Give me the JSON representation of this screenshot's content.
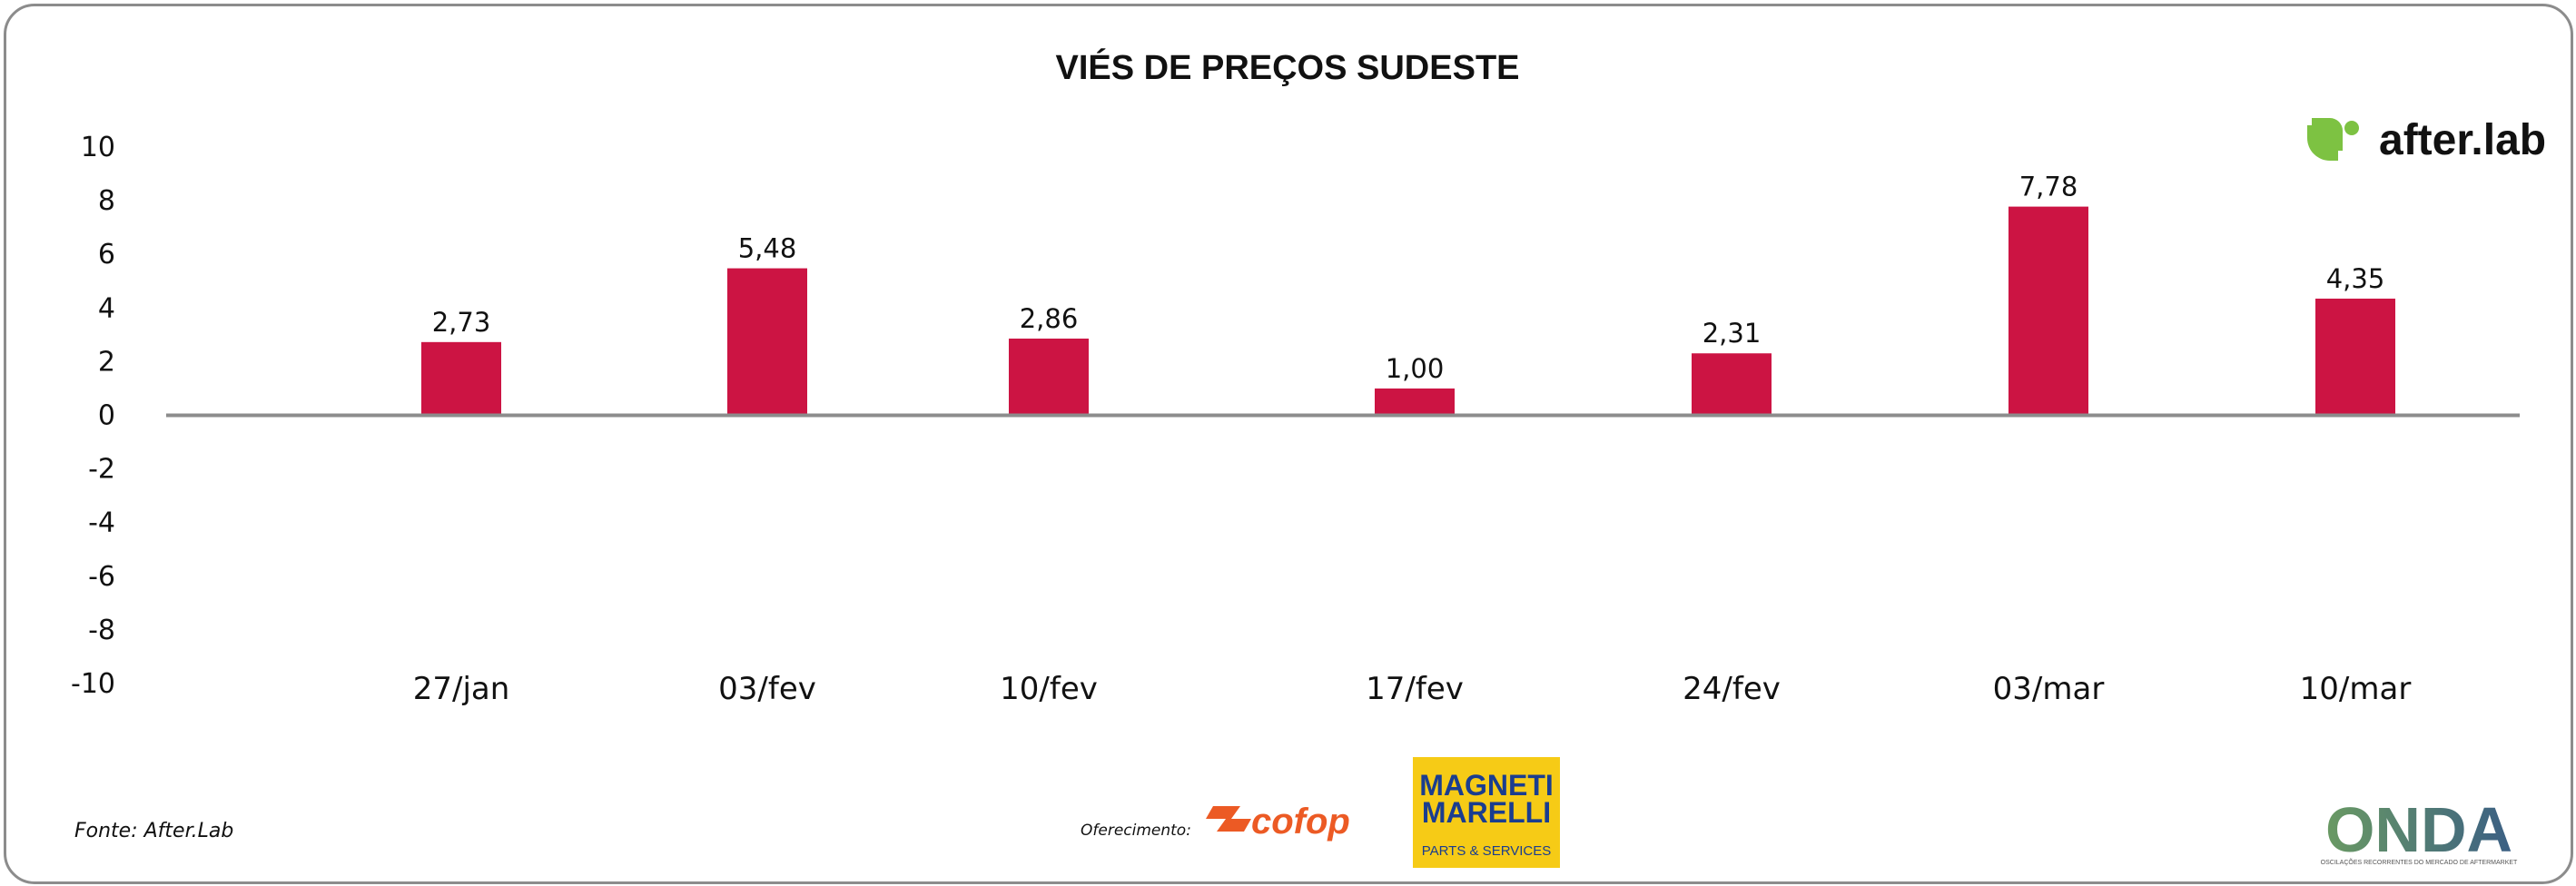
{
  "colors": {
    "bar": "#cc1443",
    "axis": "#8c8c8c",
    "afterlab_green": "#7dc242",
    "cofop_orange": "#ec5a24",
    "magneti_yellow": "#f6cb16",
    "onda_green": "#6a9a63",
    "onda_blue": "#3b5f84"
  },
  "footer": {
    "source": "Fonte: After.Lab",
    "offered_by": "Oferecimento:"
  },
  "logos": {
    "afterlab": {
      "text": "after.lab",
      "icon": "afterlab-logo-icon"
    },
    "cofop": {
      "text": "cofop"
    },
    "magneti": {
      "line1": "MAGNETI",
      "line2": "MARELLI",
      "line3": "PARTS & SERVICES"
    },
    "onda": {
      "text": "ONDA",
      "tagline": "OSCILAÇÕES RECORRENTES DO MERCADO DE AFTERMARKET"
    }
  },
  "chart_data": {
    "type": "bar",
    "title": "VIÉS DE PREÇOS SUDESTE",
    "xlabel": "",
    "ylabel": "",
    "ylim": [
      -10,
      10
    ],
    "yticks": [
      10,
      8,
      6,
      4,
      2,
      0,
      -2,
      -4,
      -6,
      -8,
      -10
    ],
    "grid": false,
    "categories": [
      "27/jan",
      "03/fev",
      "10/fev",
      "17/fev",
      "24/fev",
      "03/mar",
      "10/mar"
    ],
    "values": [
      2.73,
      5.48,
      2.86,
      1.0,
      2.31,
      7.78,
      4.35
    ],
    "value_labels": [
      "2,73",
      "5,48",
      "2,86",
      "1,00",
      "2,31",
      "7,78",
      "4,35"
    ]
  }
}
